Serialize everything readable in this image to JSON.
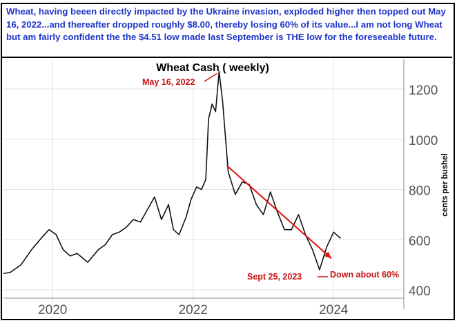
{
  "caption": "Wheat, having beeen directly impacted by the Ukraine invasion, exploded higher then topped out May 16, 2022...and thereafter dropped roughly $8.00, thereby losing 60% of its value...I am not long Wheat but am fairly confident the the $4.51 low made last September is THE low for the foreseeable future.",
  "chart_data": {
    "type": "line",
    "title": "Wheat Cash ( weekly)",
    "ylabel": "cents per bushel",
    "xlabel": "",
    "x_ticks": [
      "2020",
      "2022",
      "2024"
    ],
    "y_ticks": [
      400,
      600,
      800,
      1000,
      1200
    ],
    "ylim": [
      400,
      1290
    ],
    "xlim": [
      2019.3,
      2025.0
    ],
    "grid": true,
    "series": [
      {
        "x": [
          2019.3,
          2019.4,
          2019.55,
          2019.7,
          2019.85,
          2019.95,
          2020.05,
          2020.15,
          2020.25,
          2020.35,
          2020.5,
          2020.65,
          2020.75,
          2020.85,
          2020.95,
          2021.05,
          2021.15,
          2021.25,
          2021.35,
          2021.45,
          2021.55,
          2021.65,
          2021.72,
          2021.8,
          2021.9,
          2021.97,
          2022.05,
          2022.12,
          2022.18,
          2022.22,
          2022.27,
          2022.32,
          2022.37,
          2022.42,
          2022.5,
          2022.6,
          2022.7,
          2022.8,
          2022.9,
          2023.0,
          2023.1,
          2023.2,
          2023.3,
          2023.4,
          2023.5,
          2023.6,
          2023.7,
          2023.8,
          2023.9,
          2024.0,
          2024.1
        ],
        "values": [
          465,
          470,
          500,
          560,
          610,
          640,
          620,
          560,
          535,
          545,
          510,
          560,
          580,
          620,
          630,
          650,
          680,
          670,
          720,
          770,
          680,
          740,
          640,
          620,
          690,
          760,
          810,
          800,
          840,
          1080,
          1140,
          1110,
          1270,
          1150,
          870,
          780,
          830,
          820,
          740,
          700,
          790,
          710,
          640,
          640,
          700,
          620,
          560,
          480,
          570,
          630,
          605
        ]
      }
    ],
    "annotations": [
      {
        "text": "May 16, 2022",
        "x": 2022.37,
        "y": 1270
      },
      {
        "text": "Sept 25, 2023",
        "x": 2023.73,
        "y": 460
      },
      {
        "text": "Down about 60%",
        "x": 2023.9,
        "y": 460
      }
    ],
    "trend_arrow": {
      "x": [
        2022.48,
        2023.97
      ],
      "y": [
        895,
        525
      ],
      "color": "#e01010"
    },
    "colors": {
      "caption_text": "#1f35c9",
      "line": "#111111",
      "annotation": "#c81414",
      "arrow": "#e01010",
      "grid": "#e2e2e2"
    }
  }
}
